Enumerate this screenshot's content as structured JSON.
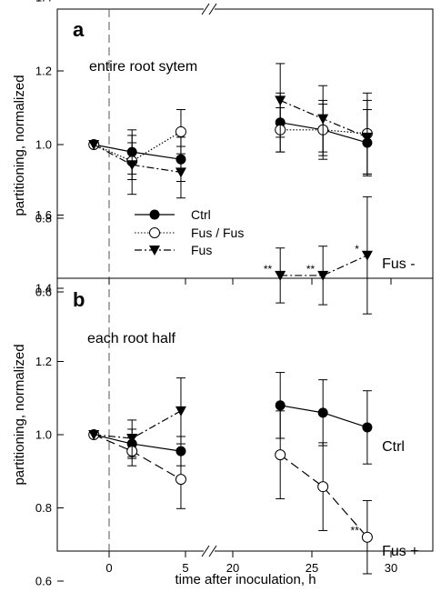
{
  "chart_data": {
    "type": "line",
    "xlabel": "time after inoculation, h",
    "ylabel": "partitioning, normalized",
    "x_ticks": [
      "0",
      "5",
      "20",
      "25",
      "30"
    ],
    "panels": [
      {
        "letter": "a",
        "title": "entire root sytem",
        "ylim": [
          0.5,
          1.5
        ],
        "y_ticks": [
          "0.6",
          "0.8",
          "1.0",
          "1.2",
          "1.4"
        ],
        "legend": [
          {
            "label": "Ctrl",
            "series": "Ctrl"
          },
          {
            "label": "Fus / Fus",
            "series": "FusFus"
          },
          {
            "label": "Fus",
            "series": "Fus"
          }
        ],
        "series": [
          {
            "key": "Ctrl",
            "marker": "filled-circle",
            "line": "solid",
            "early": [
              {
                "x": -1,
                "y": 1.0,
                "err": 0.0
              },
              {
                "x": 1.5,
                "y": 0.98,
                "err": 0.06
              },
              {
                "x": 4.7,
                "y": 0.96,
                "err": 0.06
              }
            ],
            "late": [
              {
                "x": 23,
                "y": 1.06,
                "err": 0.08
              },
              {
                "x": 25.7,
                "y": 1.04,
                "err": 0.08
              },
              {
                "x": 28.5,
                "y": 1.005,
                "err": 0.09
              }
            ]
          },
          {
            "key": "FusFus",
            "marker": "open-circle",
            "line": "dotted",
            "early": [
              {
                "x": -1,
                "y": 1.0,
                "err": 0.0
              },
              {
                "x": 1.5,
                "y": 0.955,
                "err": 0.05
              },
              {
                "x": 4.7,
                "y": 1.035,
                "err": 0.06
              }
            ],
            "late": [
              {
                "x": 23,
                "y": 1.04,
                "err": 0.06
              },
              {
                "x": 25.7,
                "y": 1.04,
                "err": 0.07
              },
              {
                "x": 28.5,
                "y": 1.03,
                "err": 0.11
              }
            ]
          },
          {
            "key": "Fus",
            "marker": "filled-triangle-down",
            "line": "dashed",
            "early": [
              {
                "x": -1,
                "y": 1.0,
                "err": 0.0
              },
              {
                "x": 1.5,
                "y": 0.945,
                "err": 0.08
              },
              {
                "x": 4.7,
                "y": 0.925,
                "err": 0.07
              }
            ],
            "late": [
              {
                "x": 23,
                "y": 1.12,
                "err": 0.1
              },
              {
                "x": 25.7,
                "y": 1.07,
                "err": 0.09
              },
              {
                "x": 28.5,
                "y": 1.02,
                "err": 0.1
              }
            ]
          }
        ],
        "annotations": []
      },
      {
        "letter": "b",
        "title": "each root half",
        "ylim": [
          0.55,
          1.7
        ],
        "y_ticks": [
          "0.6",
          "0.8",
          "1.0",
          "1.2",
          "1.4",
          "1.6"
        ],
        "legend": [],
        "series": [
          {
            "key": "Ctrl",
            "marker": "filled-circle",
            "line": "solid",
            "early": [
              {
                "x": -1,
                "y": 1.0,
                "err": 0.0
              },
              {
                "x": 1.5,
                "y": 0.975,
                "err": 0.04
              },
              {
                "x": 4.7,
                "y": 0.955,
                "err": 0.04
              }
            ],
            "late": [
              {
                "x": 23,
                "y": 1.08,
                "err": 0.09
              },
              {
                "x": 25.7,
                "y": 1.06,
                "err": 0.09
              },
              {
                "x": 28.5,
                "y": 1.02,
                "err": 0.1
              }
            ]
          },
          {
            "key": "FusPlus",
            "marker": "open-circle",
            "line": "dashed-long",
            "early": [
              {
                "x": -1,
                "y": 1.0,
                "err": 0.0
              },
              {
                "x": 1.5,
                "y": 0.955,
                "err": 0.04
              },
              {
                "x": 4.7,
                "y": 0.878,
                "err": 0.08
              }
            ],
            "late": [
              {
                "x": 23,
                "y": 0.945,
                "err": 0.12
              },
              {
                "x": 25.7,
                "y": 0.858,
                "err": 0.12
              },
              {
                "x": 28.5,
                "y": 0.72,
                "err": 0.1
              }
            ]
          },
          {
            "key": "FusMinus",
            "marker": "filled-triangle-down",
            "line": "dashed",
            "early": [
              {
                "x": -1,
                "y": 1.0,
                "err": 0.0
              },
              {
                "x": 1.5,
                "y": 0.99,
                "err": 0.05
              },
              {
                "x": 4.7,
                "y": 1.065,
                "err": 0.09
              }
            ],
            "late": [
              {
                "x": 23,
                "y": 1.435,
                "err": 0.075
              },
              {
                "x": 25.7,
                "y": 1.435,
                "err": 0.08
              },
              {
                "x": 28.5,
                "y": 1.49,
                "err": 0.16
              }
            ]
          }
        ],
        "annotations": [
          {
            "text": "Fus -",
            "x": 29.2,
            "y": 1.47
          },
          {
            "text": "Ctrl",
            "x": 29.2,
            "y": 0.97
          },
          {
            "text": "Fus +",
            "x": 29.2,
            "y": 0.685
          }
        ],
        "significance": [
          {
            "text": "**",
            "x": 23,
            "y": 1.435
          },
          {
            "text": "**",
            "x": 25.7,
            "y": 1.435
          },
          {
            "text": "*",
            "x": 28.5,
            "y": 1.49
          },
          {
            "text": "**",
            "x": 28.5,
            "y": 0.72
          }
        ]
      }
    ]
  }
}
